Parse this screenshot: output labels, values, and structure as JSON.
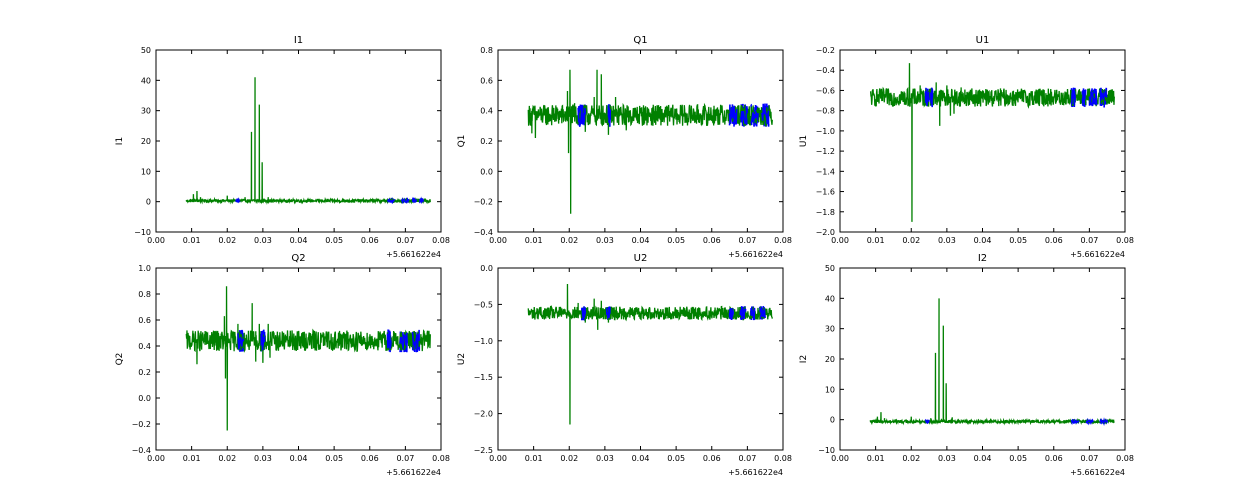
{
  "colors": {
    "series_main": "#008000",
    "series_highlight": "#0000ff",
    "frame": "#000000",
    "background": "#ffffff"
  },
  "chart_data": [
    {
      "type": "line",
      "title": "I1",
      "ylabel": "I1",
      "xlim": [
        0.0,
        0.08
      ],
      "ylim": [
        -10,
        50
      ],
      "x_ticks": [
        "0.00",
        "0.01",
        "0.02",
        "0.03",
        "0.04",
        "0.05",
        "0.06",
        "0.07",
        "0.08"
      ],
      "y_ticks": [
        "50",
        "40",
        "30",
        "20",
        "10",
        "0",
        "−10"
      ],
      "x_offset": "+5.661622e4",
      "x_range": [
        0.0085,
        0.077
      ],
      "base": 0.3,
      "noise": 0.5,
      "spikes": [
        [
          0.0105,
          2.5
        ],
        [
          0.0115,
          3.5
        ],
        [
          0.0125,
          1.5
        ],
        [
          0.02,
          2
        ],
        [
          0.023,
          1
        ],
        [
          0.025,
          1.5
        ],
        [
          0.0268,
          23
        ],
        [
          0.0278,
          41
        ],
        [
          0.029,
          32
        ],
        [
          0.0298,
          13
        ],
        [
          0.0315,
          1.5
        ],
        [
          0.033,
          1
        ]
      ],
      "blue_segments": [
        [
          0.0225,
          0.0235
        ],
        [
          0.065,
          0.067
        ],
        [
          0.069,
          0.071
        ],
        [
          0.072,
          0.073
        ],
        [
          0.074,
          0.075
        ]
      ],
      "series": [
        {
          "name": "",
          "color": "#008000"
        },
        {
          "name": "",
          "color": "#0000ff"
        }
      ],
      "grid": false
    },
    {
      "type": "line",
      "title": "Q1",
      "ylabel": "Q1",
      "xlim": [
        0.0,
        0.08
      ],
      "ylim": [
        -0.4,
        0.8
      ],
      "x_ticks": [
        "0.00",
        "0.01",
        "0.02",
        "0.03",
        "0.04",
        "0.05",
        "0.06",
        "0.07",
        "0.08"
      ],
      "y_ticks": [
        "0.8",
        "0.6",
        "0.4",
        "0.2",
        "0.0",
        "−0.2",
        "−0.4"
      ],
      "x_offset": "+5.661622e4",
      "x_range": [
        0.0085,
        0.077
      ],
      "base": 0.37,
      "noise": 0.07,
      "spikes": [
        [
          0.0095,
          0.25
        ],
        [
          0.0105,
          0.22
        ],
        [
          0.0195,
          0.53
        ],
        [
          0.0198,
          0.12
        ],
        [
          0.0202,
          0.67
        ],
        [
          0.0204,
          -0.28
        ],
        [
          0.0215,
          0.45
        ],
        [
          0.0245,
          0.26
        ],
        [
          0.027,
          0.49
        ],
        [
          0.0278,
          0.67
        ],
        [
          0.029,
          0.64
        ],
        [
          0.031,
          0.24
        ],
        [
          0.033,
          0.49
        ],
        [
          0.036,
          0.27
        ]
      ],
      "blue_segments": [
        [
          0.0225,
          0.0245
        ],
        [
          0.031,
          0.0315
        ],
        [
          0.065,
          0.067
        ],
        [
          0.068,
          0.07
        ],
        [
          0.071,
          0.073
        ],
        [
          0.074,
          0.076
        ]
      ],
      "series": [
        {
          "name": "",
          "color": "#008000"
        },
        {
          "name": "",
          "color": "#0000ff"
        }
      ],
      "grid": false
    },
    {
      "type": "line",
      "title": "U1",
      "ylabel": "U1",
      "xlim": [
        0.0,
        0.08
      ],
      "ylim": [
        -2.0,
        -0.2
      ],
      "x_ticks": [
        "0.00",
        "0.01",
        "0.02",
        "0.03",
        "0.04",
        "0.05",
        "0.06",
        "0.07",
        "0.08"
      ],
      "y_ticks": [
        "−0.2",
        "−0.4",
        "−0.6",
        "−0.8",
        "−1.0",
        "−1.2",
        "−1.4",
        "−1.6",
        "−1.8",
        "−2.0"
      ],
      "x_offset": "+5.661622e4",
      "x_range": [
        0.0085,
        0.077
      ],
      "base": -0.67,
      "noise": 0.09,
      "spikes": [
        [
          0.0195,
          -0.33
        ],
        [
          0.0202,
          -1.9
        ],
        [
          0.0225,
          -0.55
        ],
        [
          0.0255,
          -0.58
        ],
        [
          0.027,
          -0.52
        ],
        [
          0.028,
          -0.95
        ],
        [
          0.03,
          -0.55
        ],
        [
          0.031,
          -0.85
        ],
        [
          0.032,
          -0.83
        ],
        [
          0.034,
          -0.57
        ]
      ],
      "blue_segments": [
        [
          0.024,
          0.025
        ],
        [
          0.0255,
          0.026
        ],
        [
          0.065,
          0.066
        ],
        [
          0.068,
          0.069
        ],
        [
          0.07,
          0.072
        ],
        [
          0.073,
          0.075
        ]
      ],
      "series": [
        {
          "name": "",
          "color": "#008000"
        },
        {
          "name": "",
          "color": "#0000ff"
        }
      ],
      "grid": false
    },
    {
      "type": "line",
      "title": "Q2",
      "ylabel": "Q2",
      "xlim": [
        0.0,
        0.08
      ],
      "ylim": [
        -0.4,
        1.0
      ],
      "x_ticks": [
        "0.00",
        "0.01",
        "0.02",
        "0.03",
        "0.04",
        "0.05",
        "0.06",
        "0.07",
        "0.08"
      ],
      "y_ticks": [
        "1.0",
        "0.8",
        "0.6",
        "0.4",
        "0.2",
        "0.0",
        "−0.2",
        "−0.4"
      ],
      "x_offset": "+5.661622e4",
      "x_range": [
        0.0085,
        0.077
      ],
      "base": 0.44,
      "noise": 0.08,
      "spikes": [
        [
          0.0115,
          0.26
        ],
        [
          0.0192,
          0.63
        ],
        [
          0.0195,
          0.15
        ],
        [
          0.0198,
          0.86
        ],
        [
          0.02,
          -0.25
        ],
        [
          0.023,
          0.57
        ],
        [
          0.027,
          0.73
        ],
        [
          0.028,
          0.28
        ],
        [
          0.029,
          0.57
        ],
        [
          0.03,
          0.27
        ],
        [
          0.0315,
          0.57
        ],
        [
          0.032,
          0.31
        ]
      ],
      "blue_segments": [
        [
          0.023,
          0.0245
        ],
        [
          0.0295,
          0.0305
        ],
        [
          0.065,
          0.066
        ],
        [
          0.0685,
          0.0705
        ],
        [
          0.072,
          0.074
        ]
      ],
      "series": [
        {
          "name": "",
          "color": "#008000"
        },
        {
          "name": "",
          "color": "#0000ff"
        }
      ],
      "grid": false
    },
    {
      "type": "line",
      "title": "U2",
      "ylabel": "U2",
      "xlim": [
        0.0,
        0.08
      ],
      "ylim": [
        -2.5,
        0.0
      ],
      "x_ticks": [
        "0.00",
        "0.01",
        "0.02",
        "0.03",
        "0.04",
        "0.05",
        "0.06",
        "0.07",
        "0.08"
      ],
      "y_ticks": [
        "0.0",
        "−0.5",
        "−1.0",
        "−1.5",
        "−2.0",
        "−2.5"
      ],
      "x_offset": "+5.661622e4",
      "x_range": [
        0.0085,
        0.077
      ],
      "base": -0.62,
      "noise": 0.09,
      "spikes": [
        [
          0.0195,
          -0.22
        ],
        [
          0.0202,
          -2.15
        ],
        [
          0.0225,
          -0.48
        ],
        [
          0.0245,
          -0.75
        ],
        [
          0.027,
          -0.42
        ],
        [
          0.028,
          -0.85
        ],
        [
          0.029,
          -0.45
        ],
        [
          0.031,
          -0.75
        ]
      ],
      "blue_segments": [
        [
          0.0235,
          0.0245
        ],
        [
          0.0305,
          0.0315
        ],
        [
          0.065,
          0.066
        ],
        [
          0.068,
          0.0695
        ],
        [
          0.071,
          0.072
        ],
        [
          0.0735,
          0.075
        ]
      ],
      "series": [
        {
          "name": "",
          "color": "#008000"
        },
        {
          "name": "",
          "color": "#0000ff"
        }
      ],
      "grid": false
    },
    {
      "type": "line",
      "title": "I2",
      "ylabel": "I2",
      "xlim": [
        0.0,
        0.08
      ],
      "ylim": [
        -10,
        50
      ],
      "x_ticks": [
        "0.00",
        "0.01",
        "0.02",
        "0.03",
        "0.04",
        "0.05",
        "0.06",
        "0.07",
        "0.08"
      ],
      "y_ticks": [
        "50",
        "40",
        "30",
        "20",
        "10",
        "0",
        "−10"
      ],
      "x_offset": "+5.661622e4",
      "x_range": [
        0.0085,
        0.077
      ],
      "base": -0.6,
      "noise": 0.5,
      "spikes": [
        [
          0.0105,
          1
        ],
        [
          0.0115,
          2.5
        ],
        [
          0.0125,
          0.5
        ],
        [
          0.02,
          1
        ],
        [
          0.0255,
          0.5
        ],
        [
          0.0268,
          22
        ],
        [
          0.0278,
          40
        ],
        [
          0.029,
          31
        ],
        [
          0.0298,
          12
        ],
        [
          0.0315,
          0.8
        ]
      ],
      "blue_segments": [
        [
          0.024,
          0.025
        ],
        [
          0.065,
          0.067
        ],
        [
          0.069,
          0.071
        ],
        [
          0.073,
          0.075
        ]
      ],
      "series": [
        {
          "name": "",
          "color": "#008000"
        },
        {
          "name": "",
          "color": "#0000ff"
        }
      ],
      "grid": false
    }
  ]
}
